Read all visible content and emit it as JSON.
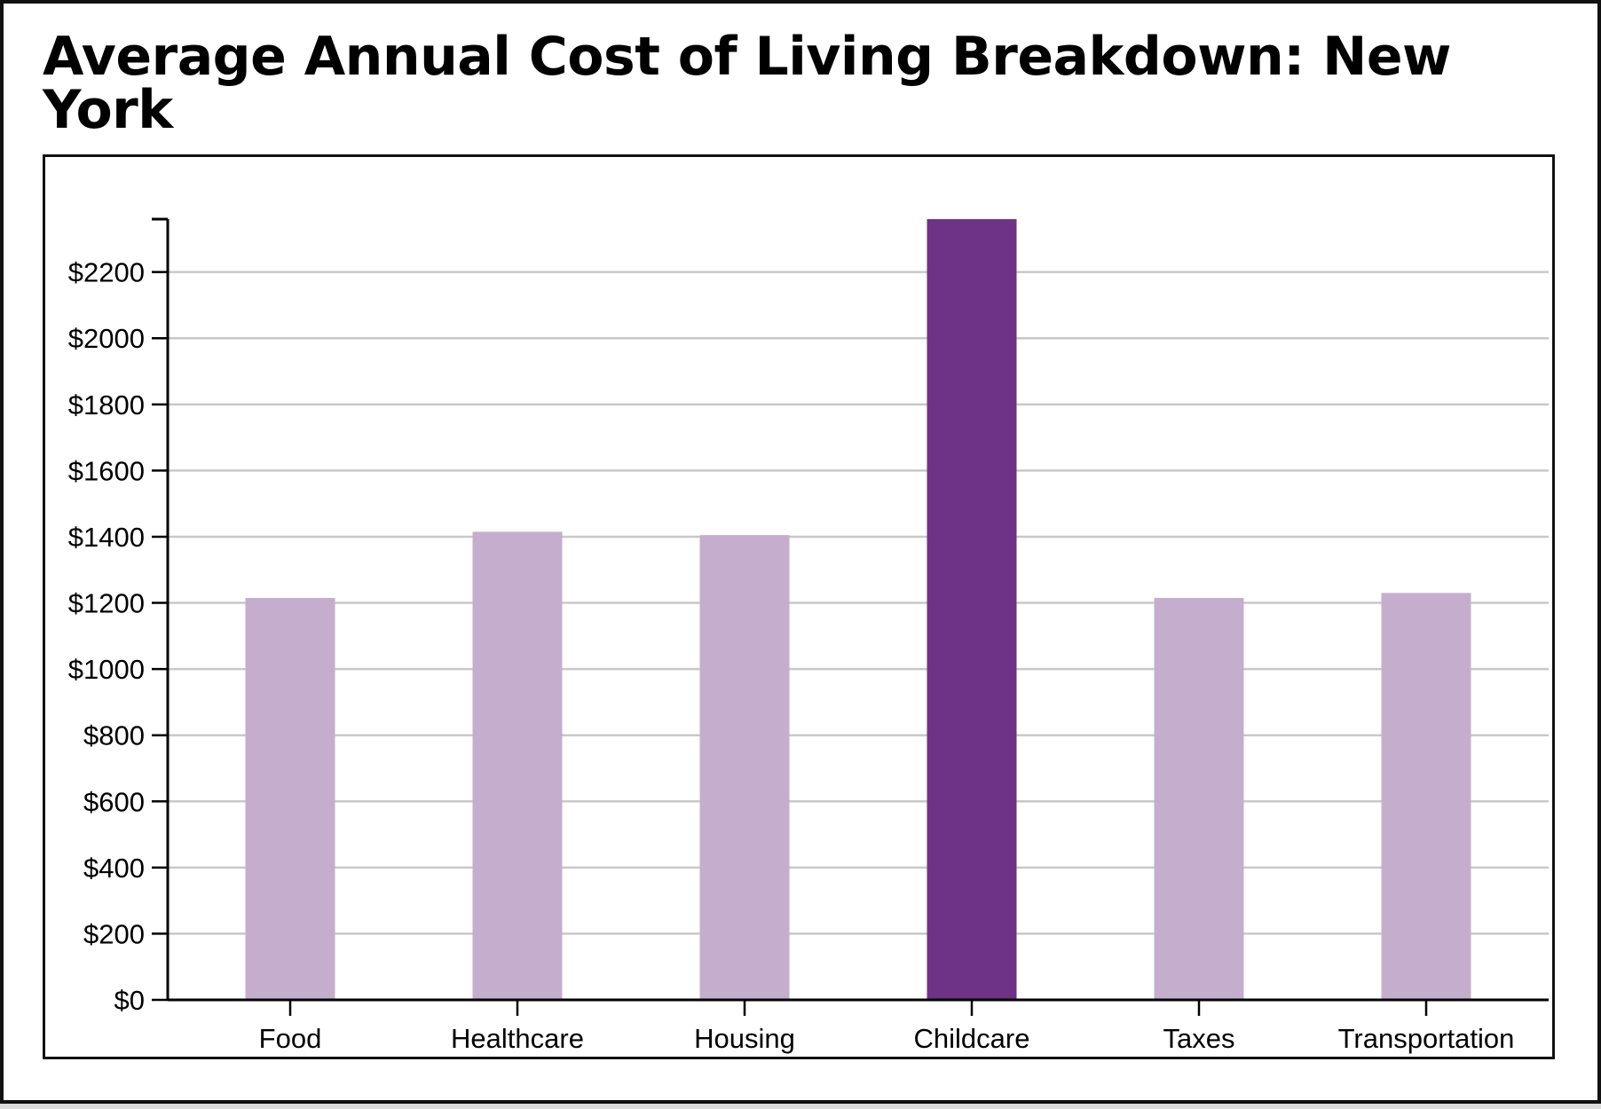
{
  "chart_data": {
    "type": "bar",
    "title": "Average Annual Cost of Living Breakdown: New York",
    "xlabel": "",
    "ylabel": "",
    "categories": [
      "Food",
      "Healthcare",
      "Housing",
      "Childcare",
      "Taxes",
      "Transportation"
    ],
    "values": [
      1215,
      1415,
      1405,
      2360,
      1215,
      1230
    ],
    "highlight": "Childcare",
    "ylim": [
      0,
      2360
    ],
    "yticks": [
      0,
      200,
      400,
      600,
      800,
      1000,
      1200,
      1400,
      1600,
      1800,
      2000,
      2200
    ],
    "ytick_labels": [
      "$0",
      "$200",
      "$400",
      "$600",
      "$800",
      "$1000",
      "$1200",
      "$1400",
      "$1600",
      "$1800",
      "$2000",
      "$2200"
    ],
    "grid": true,
    "colors": {
      "bar": "#c5aecd",
      "highlight": "#6e3386",
      "grid": "#c8c8c8",
      "axis": "#000000"
    }
  }
}
